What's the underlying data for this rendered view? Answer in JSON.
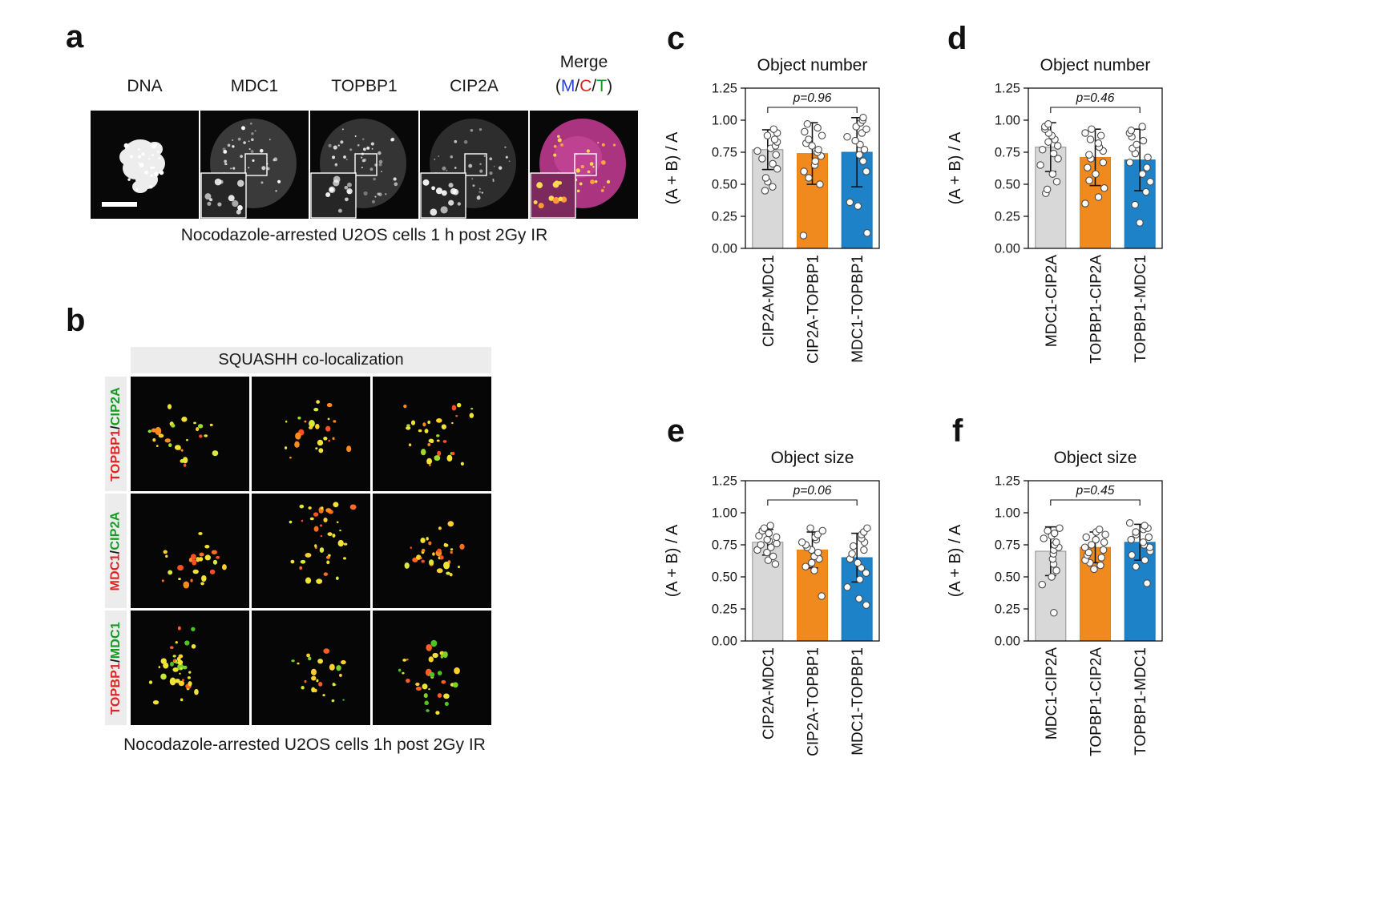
{
  "panels": {
    "a": {
      "letter": "a",
      "channel_labels": [
        "DNA",
        "MDC1",
        "TOPBP1",
        "CIP2A"
      ],
      "merge": {
        "label": "Merge",
        "channels": [
          {
            "t": "M",
            "color": "#2b43d6"
          },
          {
            "t": "C",
            "color": "#e02421"
          },
          {
            "t": "T",
            "color": "#149a22"
          }
        ]
      },
      "caption": "Nocodazole-arrested U2OS cells 1 h post 2Gy IR"
    },
    "b": {
      "letter": "b",
      "header": "SQUASHH co-localization",
      "row_labels": [
        {
          "first": "TOPBP1",
          "second": "CIP2A"
        },
        {
          "first": "MDC1",
          "second": "CIP2A"
        },
        {
          "first": "TOPBP1",
          "second": "MDC1"
        }
      ],
      "label_colors": {
        "first": "#e02421",
        "separator": "#1a1a1a",
        "second": "#149a22"
      },
      "caption": "Nocodazole-arrested U2OS cells 1h post 2Gy IR"
    },
    "c": {
      "letter": "c"
    },
    "d": {
      "letter": "d"
    },
    "e": {
      "letter": "e"
    },
    "f": {
      "letter": "f"
    }
  },
  "chart_data": [
    {
      "panel": "c",
      "type": "bar",
      "title": "Object number",
      "ylabel": "(A + B) / A",
      "ylim": [
        0,
        1.25
      ],
      "ytick_labels": [
        "0.00",
        "0.25",
        "0.50",
        "0.75",
        "1.00",
        "1.25"
      ],
      "grid": false,
      "legend": "none",
      "p_label": "p=0.96",
      "p_bracket": [
        1,
        3
      ],
      "categories": [
        "CIP2A-MDC1",
        "CIP2A-TOPBP1",
        "MDC1-TOPBP1"
      ],
      "means": [
        0.77,
        0.74,
        0.75
      ],
      "sd": [
        0.155,
        0.24,
        0.27
      ],
      "bar_colors": [
        "#d8d8d8",
        "#f18a1e",
        "#1e82c8"
      ],
      "bar_strokes": [
        "#8f8f8f",
        "#e8810f",
        "#1776b5"
      ],
      "points": [
        [
          0.45,
          0.48,
          0.52,
          0.55,
          0.62,
          0.66,
          0.7,
          0.73,
          0.76,
          0.78,
          0.8,
          0.83,
          0.85,
          0.88,
          0.9,
          0.93
        ],
        [
          0.1,
          0.5,
          0.55,
          0.6,
          0.65,
          0.68,
          0.72,
          0.75,
          0.77,
          0.8,
          0.82,
          0.85,
          0.88,
          0.91,
          0.94,
          0.97
        ],
        [
          0.12,
          0.33,
          0.36,
          0.6,
          0.68,
          0.73,
          0.77,
          0.81,
          0.84,
          0.87,
          0.9,
          0.93,
          0.95,
          0.98,
          1.0,
          1.02
        ]
      ]
    },
    {
      "panel": "d",
      "type": "bar",
      "title": "Object number",
      "ylabel": "(A + B) / A",
      "ylim": [
        0,
        1.25
      ],
      "ytick_labels": [
        "0.00",
        "0.25",
        "0.50",
        "0.75",
        "1.00",
        "1.25"
      ],
      "grid": false,
      "legend": "none",
      "p_label": "p=0.46",
      "p_bracket": [
        1,
        3
      ],
      "categories": [
        "MDC1-CIP2A",
        "TOPBP1-CIP2A",
        "TOPBP1-MDC1"
      ],
      "means": [
        0.79,
        0.71,
        0.69
      ],
      "sd": [
        0.19,
        0.22,
        0.24
      ],
      "bar_colors": [
        "#d8d8d8",
        "#f18a1e",
        "#1e82c8"
      ],
      "bar_strokes": [
        "#8f8f8f",
        "#e8810f",
        "#1776b5"
      ],
      "points": [
        [
          0.43,
          0.46,
          0.52,
          0.58,
          0.65,
          0.7,
          0.74,
          0.77,
          0.8,
          0.83,
          0.85,
          0.88,
          0.9,
          0.93,
          0.95,
          0.97
        ],
        [
          0.35,
          0.4,
          0.47,
          0.53,
          0.58,
          0.63,
          0.67,
          0.7,
          0.73,
          0.76,
          0.79,
          0.82,
          0.85,
          0.88,
          0.9,
          0.93
        ],
        [
          0.2,
          0.34,
          0.44,
          0.52,
          0.58,
          0.63,
          0.67,
          0.71,
          0.74,
          0.78,
          0.81,
          0.84,
          0.87,
          0.9,
          0.92,
          0.95
        ]
      ]
    },
    {
      "panel": "e",
      "type": "bar",
      "title": "Object size",
      "ylabel": "(A + B) / A",
      "ylim": [
        0,
        1.25
      ],
      "ytick_labels": [
        "0.00",
        "0.25",
        "0.50",
        "0.75",
        "1.00",
        "1.25"
      ],
      "grid": false,
      "legend": "none",
      "p_label": "p=0.06",
      "p_bracket": [
        1,
        3
      ],
      "categories": [
        "CIP2A-MDC1",
        "CIP2A-TOPBP1",
        "MDC1-TOPBP1"
      ],
      "means": [
        0.77,
        0.71,
        0.65
      ],
      "sd": [
        0.1,
        0.14,
        0.19
      ],
      "bar_colors": [
        "#d8d8d8",
        "#f18a1e",
        "#1e82c8"
      ],
      "bar_strokes": [
        "#8f8f8f",
        "#e8810f",
        "#1776b5"
      ],
      "points": [
        [
          0.6,
          0.63,
          0.66,
          0.69,
          0.71,
          0.73,
          0.75,
          0.76,
          0.78,
          0.79,
          0.81,
          0.82,
          0.84,
          0.86,
          0.88,
          0.9
        ],
        [
          0.35,
          0.55,
          0.58,
          0.61,
          0.64,
          0.66,
          0.69,
          0.71,
          0.73,
          0.75,
          0.77,
          0.79,
          0.81,
          0.83,
          0.86,
          0.88
        ],
        [
          0.28,
          0.33,
          0.42,
          0.48,
          0.53,
          0.57,
          0.61,
          0.64,
          0.68,
          0.71,
          0.74,
          0.77,
          0.8,
          0.83,
          0.85,
          0.88
        ]
      ]
    },
    {
      "panel": "f",
      "type": "bar",
      "title": "Object size",
      "ylabel": "(A + B) / A",
      "ylim": [
        0,
        1.25
      ],
      "ytick_labels": [
        "0.00",
        "0.25",
        "0.50",
        "0.75",
        "1.00",
        "1.25"
      ],
      "grid": false,
      "legend": "none",
      "p_label": "p=0.45",
      "p_bracket": [
        1,
        3
      ],
      "categories": [
        "MDC1-CIP2A",
        "TOPBP1-CIP2A",
        "TOPBP1-MDC1"
      ],
      "means": [
        0.7,
        0.73,
        0.77
      ],
      "sd": [
        0.19,
        0.12,
        0.14
      ],
      "bar_colors": [
        "#d8d8d8",
        "#f18a1e",
        "#1e82c8"
      ],
      "bar_strokes": [
        "#8f8f8f",
        "#e8810f",
        "#1776b5"
      ],
      "points": [
        [
          0.22,
          0.44,
          0.5,
          0.55,
          0.6,
          0.64,
          0.68,
          0.71,
          0.73,
          0.75,
          0.77,
          0.8,
          0.82,
          0.84,
          0.86,
          0.88
        ],
        [
          0.56,
          0.59,
          0.61,
          0.63,
          0.65,
          0.67,
          0.69,
          0.71,
          0.73,
          0.75,
          0.77,
          0.79,
          0.81,
          0.83,
          0.85,
          0.87
        ],
        [
          0.45,
          0.58,
          0.63,
          0.67,
          0.7,
          0.73,
          0.75,
          0.77,
          0.79,
          0.81,
          0.83,
          0.85,
          0.87,
          0.88,
          0.9,
          0.92
        ]
      ]
    }
  ]
}
